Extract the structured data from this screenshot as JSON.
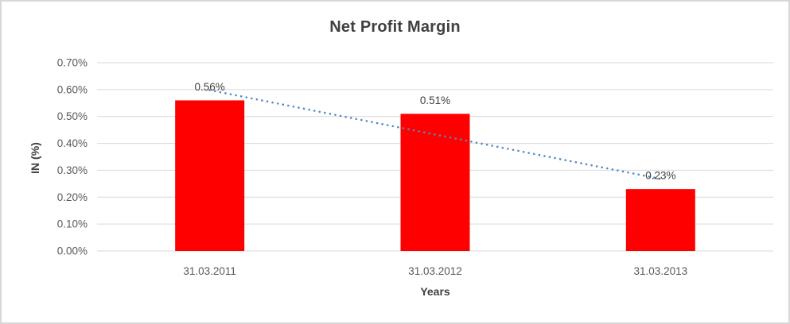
{
  "chart_data": {
    "type": "bar",
    "title": "Net Profit Margin",
    "xlabel": "Years",
    "ylabel": "IN (%)",
    "categories": [
      "31.03.2011",
      "31.03.2012",
      "31.03.2013"
    ],
    "values": [
      0.56,
      0.51,
      0.23
    ],
    "data_labels": [
      "0.56%",
      "0.51%",
      "0.23%"
    ],
    "y_ticks": [
      "0.00%",
      "0.10%",
      "0.20%",
      "0.30%",
      "0.40%",
      "0.50%",
      "0.60%",
      "0.70%"
    ],
    "y_tick_step": 0.1,
    "ylim": [
      0,
      0.7
    ],
    "grid": true,
    "legend": "none",
    "bar_color": "#FF0000",
    "trendline": {
      "type": "linear",
      "style": "dotted",
      "color": "#4F8BC9",
      "start_value": 0.598,
      "end_value": 0.268
    },
    "colors": {
      "title_text": "#404040",
      "axis_text": "#595959",
      "axis_title_text": "#404040",
      "gridline": "#D9D9D9",
      "background": "#FFFFFF",
      "frame_border": "#D7D7D7"
    }
  }
}
